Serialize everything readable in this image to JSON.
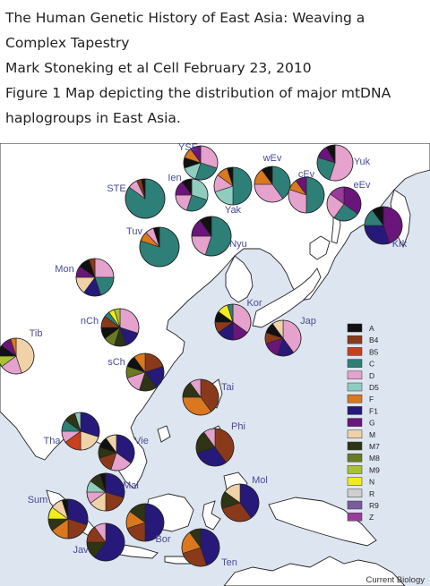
{
  "caption": {
    "line1": "The Human Genetic History of East Asia: Weaving a",
    "line2": "Complex Tapestry",
    "line3": "Mark Stoneking et al Cell February 23, 2010",
    "line4": "Figure 1 Map depicting the distribution of major mtDNA",
    "line5": "haplogroups in East Asia."
  },
  "map": {
    "sea_color": "#dde5f0",
    "land_color": "#ffffff",
    "label_color": "#4a4a9a",
    "credit": "Current Biology"
  },
  "legend": [
    {
      "label": "A",
      "color": "#111111"
    },
    {
      "label": "B4",
      "color": "#8a3a1a"
    },
    {
      "label": "B5",
      "color": "#c8401e"
    },
    {
      "label": "C",
      "color": "#2e7f78"
    },
    {
      "label": "D",
      "color": "#e4a2cc"
    },
    {
      "label": "D5",
      "color": "#8fcdbf"
    },
    {
      "label": "F",
      "color": "#d9781e"
    },
    {
      "label": "F1",
      "color": "#26197a"
    },
    {
      "label": "G",
      "color": "#6a157a"
    },
    {
      "label": "M",
      "color": "#f0d2a8"
    },
    {
      "label": "M7",
      "color": "#2f3414"
    },
    {
      "label": "M8",
      "color": "#6a7a22"
    },
    {
      "label": "M9",
      "color": "#a8c232"
    },
    {
      "label": "N",
      "color": "#f2ec1e"
    },
    {
      "label": "R",
      "color": "#cfcfcf"
    },
    {
      "label": "R9",
      "color": "#7a5a9a"
    },
    {
      "label": "Z",
      "color": "#9a3a9a"
    }
  ],
  "populations": [
    {
      "label": "YSE",
      "slices": {
        "D": 30,
        "C": 25,
        "D5": 15,
        "A": 10,
        "F": 10,
        "G": 10
      }
    },
    {
      "label": "Yuk",
      "slices": {
        "D": 55,
        "C": 25,
        "G": 12,
        "A": 8
      }
    },
    {
      "label": "wEv",
      "slices": {
        "C": 40,
        "D": 35,
        "F": 15,
        "A": 10
      }
    },
    {
      "label": "Ien",
      "slices": {
        "D5": 30,
        "C": 25,
        "D": 20,
        "G": 15,
        "A": 10
      }
    },
    {
      "label": "cEv",
      "slices": {
        "C": 50,
        "D": 30,
        "F": 10,
        "G": 10
      }
    },
    {
      "label": "eEv",
      "slices": {
        "G": 35,
        "C": 25,
        "D": 25,
        "Z": 15
      }
    },
    {
      "label": "STE",
      "slices": {
        "C": 85,
        "D": 8,
        "B4": 4,
        "A": 3
      }
    },
    {
      "label": "Yak",
      "slices": {
        "C": 50,
        "D5": 20,
        "D": 15,
        "F": 10,
        "A": 5
      }
    },
    {
      "label": "Krk",
      "slices": {
        "G": 45,
        "F1": 30,
        "C": 15,
        "A": 10
      }
    },
    {
      "label": "Tuv",
      "slices": {
        "C": 80,
        "F": 8,
        "D": 7,
        "A": 5
      }
    },
    {
      "label": "Nyu",
      "slices": {
        "C": 55,
        "D": 20,
        "G": 15,
        "A": 10
      }
    },
    {
      "label": "Mon",
      "slices": {
        "D": 25,
        "C": 20,
        "F1": 15,
        "M": 15,
        "G": 10,
        "A": 10,
        "B4": 5
      }
    },
    {
      "label": "Kor",
      "slices": {
        "D": 35,
        "G": 15,
        "F1": 15,
        "B4": 10,
        "A": 10,
        "N": 10,
        "C": 5
      }
    },
    {
      "label": "Jap",
      "slices": {
        "D": 40,
        "F1": 15,
        "G": 15,
        "B4": 10,
        "A": 10,
        "M": 10
      }
    },
    {
      "label": "nCh",
      "slices": {
        "D": 30,
        "F1": 15,
        "M7": 10,
        "M8": 10,
        "A": 10,
        "B4": 10,
        "C": 5,
        "N": 5,
        "M9": 5
      }
    },
    {
      "label": "Tib",
      "slices": {
        "M": 45,
        "D": 20,
        "M9": 10,
        "A": 10,
        "G": 10,
        "F": 5
      }
    },
    {
      "label": "sCh",
      "slices": {
        "B4": 20,
        "F1": 20,
        "M7": 15,
        "D": 15,
        "M8": 10,
        "A": 10,
        "F": 10
      }
    },
    {
      "label": "Tai",
      "slices": {
        "B4": 40,
        "F": 35,
        "M7": 15,
        "D": 10
      }
    },
    {
      "label": "Tha",
      "slices": {
        "F1": 30,
        "M": 20,
        "B5": 15,
        "D": 10,
        "C": 10,
        "M7": 10,
        "D5": 5
      }
    },
    {
      "label": "Vie",
      "slices": {
        "F1": 35,
        "D": 20,
        "B4": 15,
        "M7": 10,
        "A": 10,
        "M": 10
      }
    },
    {
      "label": "Phi",
      "slices": {
        "B4": 40,
        "F1": 30,
        "M7": 20,
        "D": 10
      }
    },
    {
      "label": "Mal",
      "slices": {
        "F1": 30,
        "B4": 20,
        "M": 15,
        "D": 10,
        "D5": 10,
        "M7": 10,
        "A": 5
      }
    },
    {
      "label": "Mol",
      "slices": {
        "F1": 40,
        "B4": 30,
        "M7": 15,
        "M": 15
      }
    },
    {
      "label": "Sum",
      "slices": {
        "F1": 30,
        "B4": 20,
        "F": 15,
        "M7": 10,
        "N": 10,
        "M": 10,
        "A": 5
      }
    },
    {
      "label": "Jav",
      "slices": {
        "F1": 60,
        "M7": 15,
        "B4": 15,
        "D": 10
      }
    },
    {
      "label": "Bor",
      "slices": {
        "F1": 50,
        "B4": 20,
        "F": 15,
        "M7": 15
      }
    },
    {
      "label": "Ten",
      "slices": {
        "F1": 45,
        "B4": 25,
        "F": 20,
        "M7": 10
      }
    }
  ]
}
